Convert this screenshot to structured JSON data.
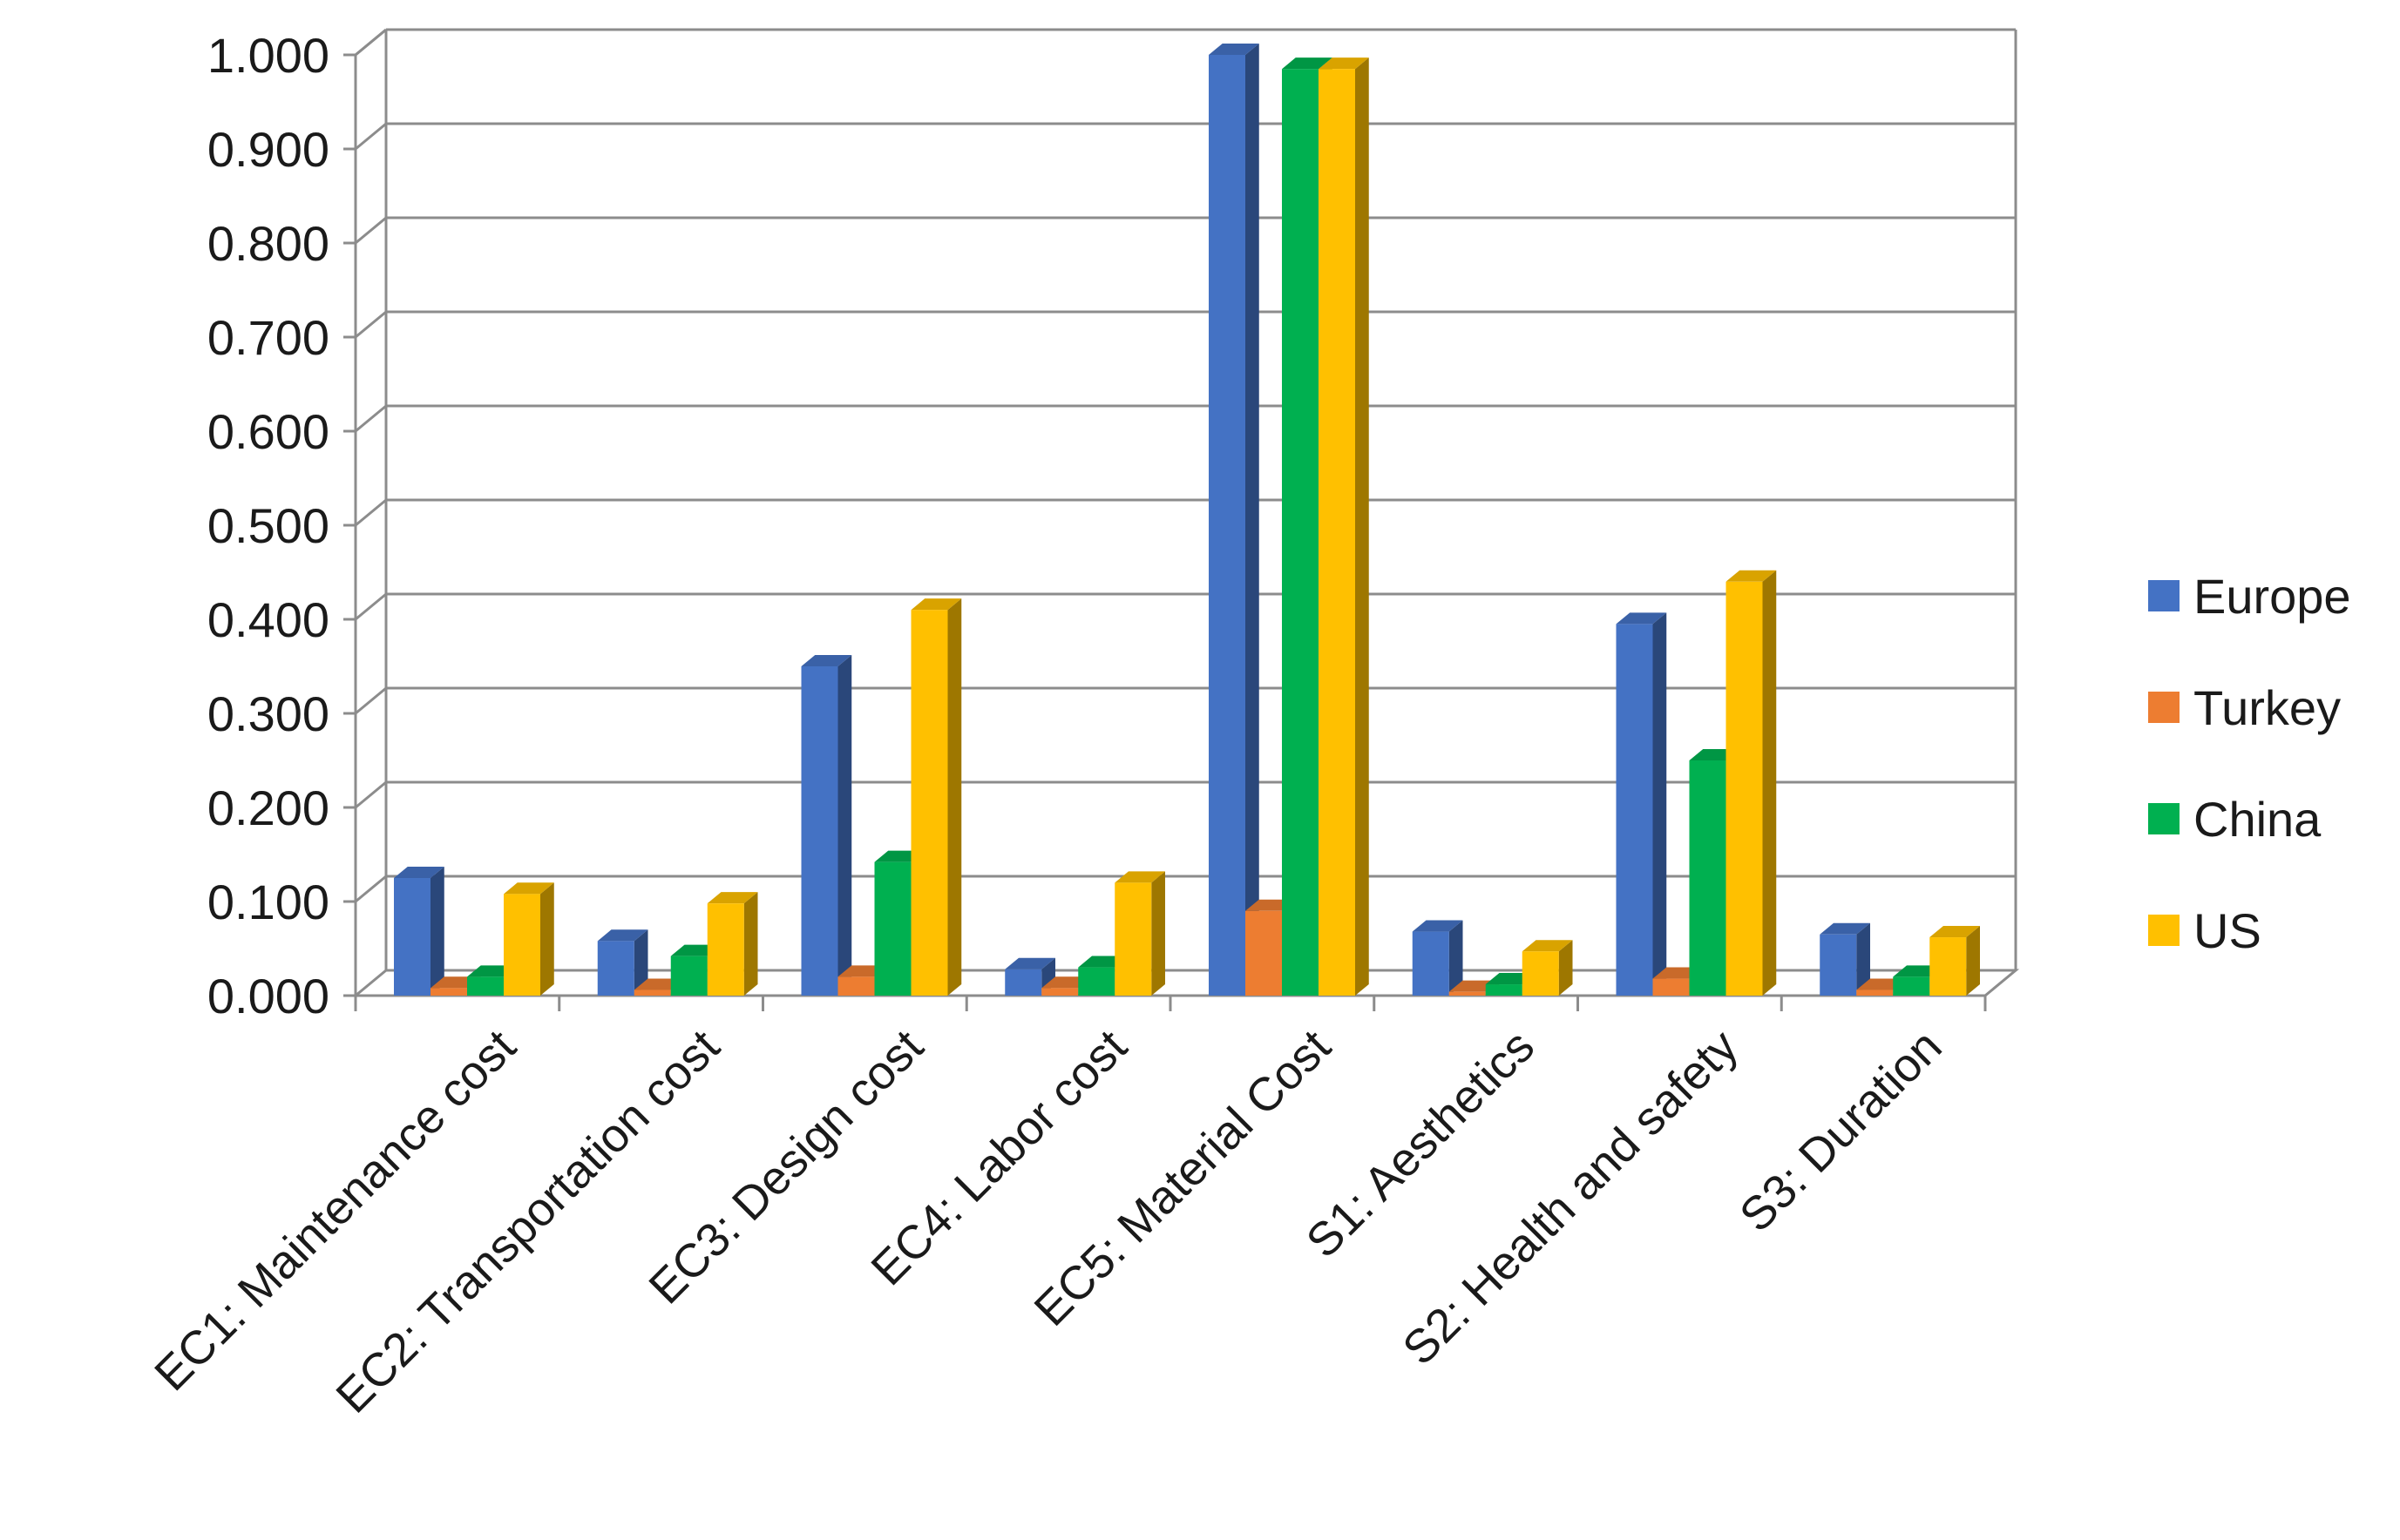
{
  "chart_data": {
    "type": "bar",
    "categories": [
      "EC1: Maintenance cost",
      "EC2: Transportation cost",
      "EC3: Design cost",
      "EC4: Labor cost",
      "EC5: Material Cost",
      "S1: Aesthetics",
      "S2: Health and safety",
      "S3: Duration"
    ],
    "series": [
      {
        "name": "Europe",
        "values": [
          0.125,
          0.058,
          0.35,
          0.028,
          1.0,
          0.068,
          0.395,
          0.065
        ]
      },
      {
        "name": "Turkey",
        "values": [
          0.008,
          0.006,
          0.02,
          0.008,
          0.09,
          0.004,
          0.018,
          0.006
        ]
      },
      {
        "name": "China",
        "values": [
          0.02,
          0.042,
          0.142,
          0.03,
          0.985,
          0.012,
          0.25,
          0.02
        ]
      },
      {
        "name": "US",
        "values": [
          0.108,
          0.098,
          0.41,
          0.12,
          0.985,
          0.047,
          0.44,
          0.062
        ]
      }
    ],
    "yticks": [
      "0.000",
      "0.100",
      "0.200",
      "0.300",
      "0.400",
      "0.500",
      "0.600",
      "0.700",
      "0.800",
      "0.900",
      "1.000"
    ],
    "ylim": [
      0,
      1.0
    ],
    "grid": true,
    "legend_position": "right",
    "title": "",
    "xlabel": "",
    "ylabel": "",
    "colors": {
      "Europe": "#4472C4",
      "Turkey": "#ED7D31",
      "China": "#00B050",
      "US": "#FFC000"
    }
  }
}
